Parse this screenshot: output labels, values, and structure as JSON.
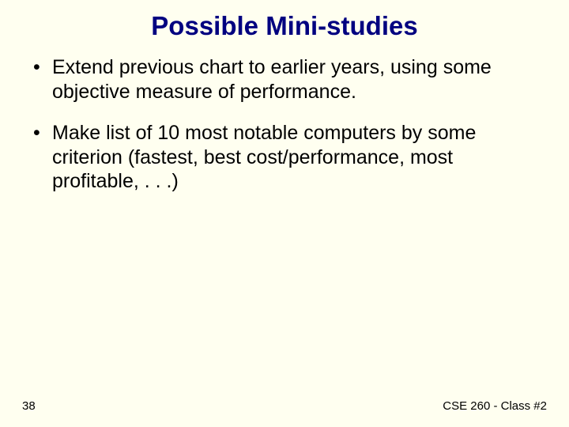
{
  "slide": {
    "title": "Possible Mini-studies",
    "title_color": "#000080",
    "title_fontsize": 33,
    "body_color": "#000000",
    "body_fontsize": 25,
    "background_color": "#fffff0",
    "bullets": [
      "Extend previous chart to earlier years, using some objective measure of performance.",
      "Make list of 10 most notable computers by some criterion (fastest, best cost/performance, most profitable, . . .)"
    ],
    "footer": {
      "page_number": "38",
      "class_label": "CSE 260 - Class #2",
      "fontsize": 15
    }
  }
}
